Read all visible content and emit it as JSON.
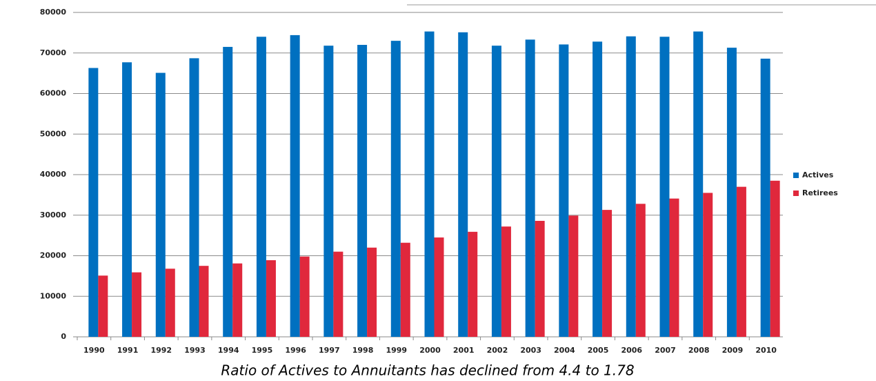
{
  "chart_data": {
    "type": "bar",
    "caption": "Ratio of Actives to Annuitants has declined from 4.4 to 1.78",
    "categories": [
      "1990",
      "1991",
      "1992",
      "1993",
      "1994",
      "1995",
      "1996",
      "1997",
      "1998",
      "1999",
      "2000",
      "2001",
      "2002",
      "2003",
      "2004",
      "2005",
      "2006",
      "2007",
      "2008",
      "2009",
      "2010"
    ],
    "series": [
      {
        "name": "Actives",
        "color": "#0070c0",
        "values": [
          66300,
          67700,
          65100,
          68700,
          71500,
          74000,
          74400,
          71800,
          72000,
          73000,
          75300,
          75100,
          71800,
          73300,
          72100,
          72800,
          74100,
          74000,
          75300,
          71300,
          68600
        ]
      },
      {
        "name": "Retirees",
        "color": "#e0283c",
        "values": [
          15100,
          15900,
          16800,
          17500,
          18100,
          18900,
          19800,
          21000,
          22000,
          23200,
          24500,
          25900,
          27200,
          28600,
          29900,
          31300,
          32800,
          34100,
          35500,
          37000,
          38500
        ]
      }
    ],
    "ylim": [
      0,
      80000
    ],
    "yticks": [
      0,
      10000,
      20000,
      30000,
      40000,
      50000,
      60000,
      70000,
      80000
    ],
    "grid": true,
    "legend": "right"
  }
}
